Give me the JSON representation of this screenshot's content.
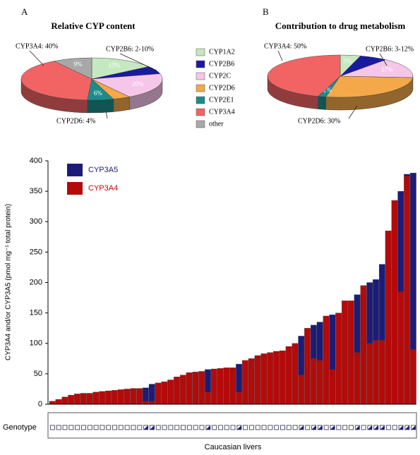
{
  "chart_data": [
    {
      "type": "pie",
      "panel": "A",
      "title": "Relative CYP content",
      "categories": [
        "CYP1A2",
        "CYP2B6",
        "CYP2C",
        "CYP2D6",
        "CYP2E1",
        "CYP3A4",
        "other"
      ],
      "colors": [
        "#c6e8c0",
        "#1a1aa0",
        "#f6c6ea",
        "#f4a84a",
        "#1b8c8c",
        "#f26464",
        "#a8a8a8"
      ],
      "values": [
        15,
        6,
        20,
        4,
        6,
        40,
        9
      ],
      "value_labels": [
        "15%",
        null,
        "20%",
        null,
        "6%",
        null,
        "9%"
      ],
      "annotations": [
        "CYP3A4: 40%",
        "CYP2B6: 2-10%",
        "CYP2D6: 4%"
      ]
    },
    {
      "type": "pie",
      "panel": "B",
      "title": "Contribution to drug metabolism",
      "values": [
        5,
        7,
        17,
        30,
        2,
        50
      ],
      "value_labels": [
        "5%",
        null,
        "17%",
        null,
        "2%",
        null
      ],
      "annotations": [
        "CYP3A4: 50%",
        "CYP2B6: 3-12%",
        "CYP2D6: 30%"
      ]
    },
    {
      "type": "stacked-bar",
      "ylabel": "CYP3A4 and/or CYP3A5 (pmol mg⁻¹ total protein)",
      "xlabel": "Caucasian livers",
      "row_label": "Genotype",
      "ylim": [
        0,
        400
      ],
      "yticks": [
        0,
        50,
        100,
        150,
        200,
        250,
        300,
        350,
        400
      ],
      "series": [
        {
          "name": "CYP3A5",
          "color": "#1c1c78",
          "values": [
            0,
            0,
            0,
            0,
            0,
            0,
            0,
            0,
            0,
            0,
            0,
            0,
            0,
            0,
            0,
            22,
            28,
            0,
            0,
            0,
            0,
            0,
            0,
            0,
            0,
            37,
            0,
            0,
            0,
            0,
            46,
            0,
            0,
            0,
            0,
            0,
            0,
            0,
            0,
            0,
            64,
            0,
            55,
            63,
            0,
            90,
            0,
            0,
            0,
            95,
            0,
            100,
            100,
            125,
            0,
            0,
            165,
            3,
            290
          ]
        },
        {
          "name": "CYP3A4",
          "color": "#b40a0a",
          "values": [
            5,
            8,
            12,
            15,
            17,
            18,
            18,
            20,
            21,
            22,
            23,
            24,
            25,
            26,
            26,
            5,
            5,
            35,
            37,
            40,
            45,
            48,
            52,
            53,
            54,
            20,
            58,
            59,
            60,
            60,
            20,
            72,
            75,
            80,
            83,
            85,
            87,
            88,
            95,
            100,
            48,
            125,
            75,
            72,
            145,
            57,
            150,
            170,
            170,
            85,
            195,
            100,
            105,
            105,
            285,
            335,
            185,
            375,
            90
          ]
        }
      ]
    }
  ]
}
